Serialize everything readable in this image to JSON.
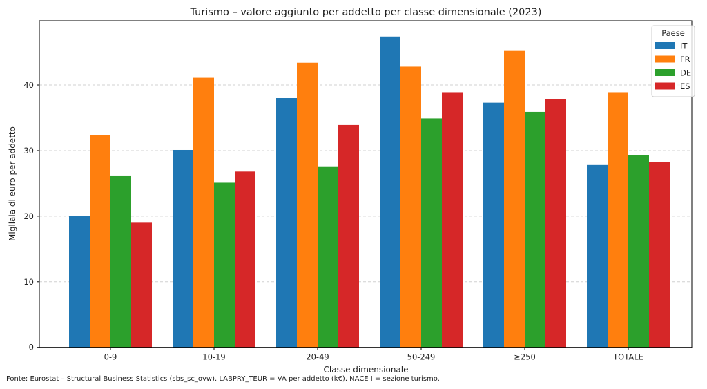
{
  "chart_data": {
    "type": "bar",
    "title": "Turismo – valore aggiunto per addetto per classe dimensionale (2023)",
    "xlabel": "Classe dimensionale",
    "ylabel": "Migliaia di euro per addetto",
    "ylim": [
      0,
      49.8
    ],
    "yticks": [
      0,
      10,
      20,
      30,
      40
    ],
    "grid": "y dashed",
    "categories": [
      "0-9",
      "10-19",
      "20-49",
      "50-249",
      "≥250",
      "TOTALE"
    ],
    "legend": {
      "title": "Paese",
      "placement": "top-right"
    },
    "series": [
      {
        "name": "IT",
        "color": "#1f77b4",
        "values": [
          20.0,
          30.1,
          38.0,
          47.4,
          37.3,
          27.8
        ]
      },
      {
        "name": "FR",
        "color": "#ff7f0e",
        "values": [
          32.4,
          41.1,
          43.4,
          42.8,
          45.2,
          38.9
        ]
      },
      {
        "name": "DE",
        "color": "#2ca02c",
        "values": [
          26.1,
          25.1,
          27.6,
          34.9,
          35.9,
          29.3
        ]
      },
      {
        "name": "ES",
        "color": "#d62728",
        "values": [
          19.0,
          26.8,
          33.9,
          38.9,
          37.8,
          28.3
        ]
      }
    ],
    "footnote": "Fonte: Eurostat – Structural Business Statistics (sbs_sc_ovw). LABPRY_TEUR = VA per addetto (k€). NACE I = sezione turismo."
  }
}
